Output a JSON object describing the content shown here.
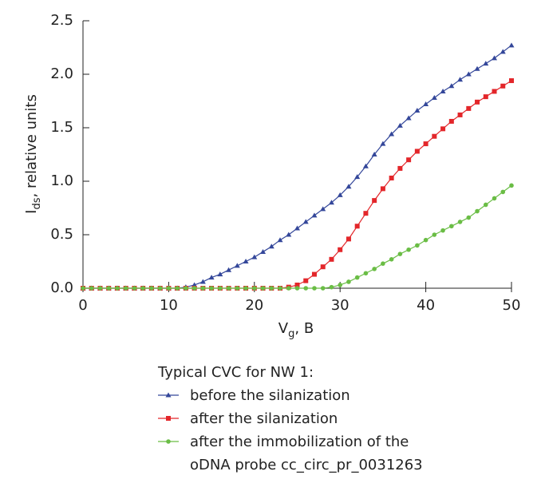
{
  "chart_data": {
    "type": "line",
    "xlabel": {
      "main": "V",
      "sub": "g",
      "rest": ", B"
    },
    "ylabel": {
      "main": "I",
      "sub": "ds",
      "rest": ", relative units"
    },
    "legend_title": "Typical CVC for NW 1:",
    "x": [
      0,
      1,
      2,
      3,
      4,
      5,
      6,
      7,
      8,
      9,
      10,
      11,
      12,
      13,
      14,
      15,
      16,
      17,
      18,
      19,
      20,
      21,
      22,
      23,
      24,
      25,
      26,
      27,
      28,
      29,
      30,
      31,
      32,
      33,
      34,
      35,
      36,
      37,
      38,
      39,
      40,
      41,
      42,
      43,
      44,
      45,
      46,
      47,
      48,
      49,
      50
    ],
    "xlim": [
      0,
      50
    ],
    "xticks": [
      0,
      10,
      20,
      30,
      40,
      50
    ],
    "ylim": [
      0,
      2.5
    ],
    "yticks": [
      {
        "value": 0,
        "label": "0.0"
      },
      0.5,
      {
        "value": 1,
        "label": "1.0"
      },
      1.5,
      {
        "value": 2,
        "label": "2.0"
      },
      2.5
    ],
    "series": [
      {
        "name": "before the silanization",
        "color": "#34479a",
        "marker": "triangle",
        "values": [
          0,
          0,
          0,
          0,
          0,
          0,
          0,
          0,
          0,
          0,
          0,
          0,
          0.01,
          0.03,
          0.06,
          0.1,
          0.13,
          0.17,
          0.21,
          0.25,
          0.29,
          0.34,
          0.39,
          0.45,
          0.5,
          0.56,
          0.62,
          0.68,
          0.74,
          0.8,
          0.87,
          0.95,
          1.04,
          1.14,
          1.25,
          1.35,
          1.44,
          1.52,
          1.59,
          1.66,
          1.72,
          1.78,
          1.84,
          1.89,
          1.95,
          2.0,
          2.05,
          2.1,
          2.15,
          2.21,
          2.27
        ]
      },
      {
        "name": "after the silanization",
        "color": "#e3262a",
        "marker": "square",
        "values": [
          0,
          0,
          0,
          0,
          0,
          0,
          0,
          0,
          0,
          0,
          0,
          0,
          0,
          0,
          0,
          0,
          0,
          0,
          0,
          0,
          0,
          0,
          0,
          0,
          0.01,
          0.03,
          0.07,
          0.13,
          0.2,
          0.27,
          0.36,
          0.46,
          0.58,
          0.7,
          0.82,
          0.93,
          1.03,
          1.12,
          1.2,
          1.28,
          1.35,
          1.42,
          1.49,
          1.56,
          1.62,
          1.68,
          1.74,
          1.79,
          1.84,
          1.89,
          1.94
        ]
      },
      {
        "name": "after the immobilization of the oDNA probe cc_circ_pr_0031263",
        "color": "#6abd45",
        "marker": "circle",
        "values": [
          0,
          0,
          0,
          0,
          0,
          0,
          0,
          0,
          0,
          0,
          0,
          0,
          0,
          0,
          0,
          0,
          0,
          0,
          0,
          0,
          0,
          0,
          0,
          0,
          0,
          0,
          0,
          0,
          0,
          0.01,
          0.03,
          0.06,
          0.1,
          0.14,
          0.18,
          0.23,
          0.27,
          0.32,
          0.36,
          0.4,
          0.45,
          0.5,
          0.54,
          0.58,
          0.62,
          0.66,
          0.72,
          0.78,
          0.84,
          0.9,
          0.96
        ]
      }
    ]
  }
}
